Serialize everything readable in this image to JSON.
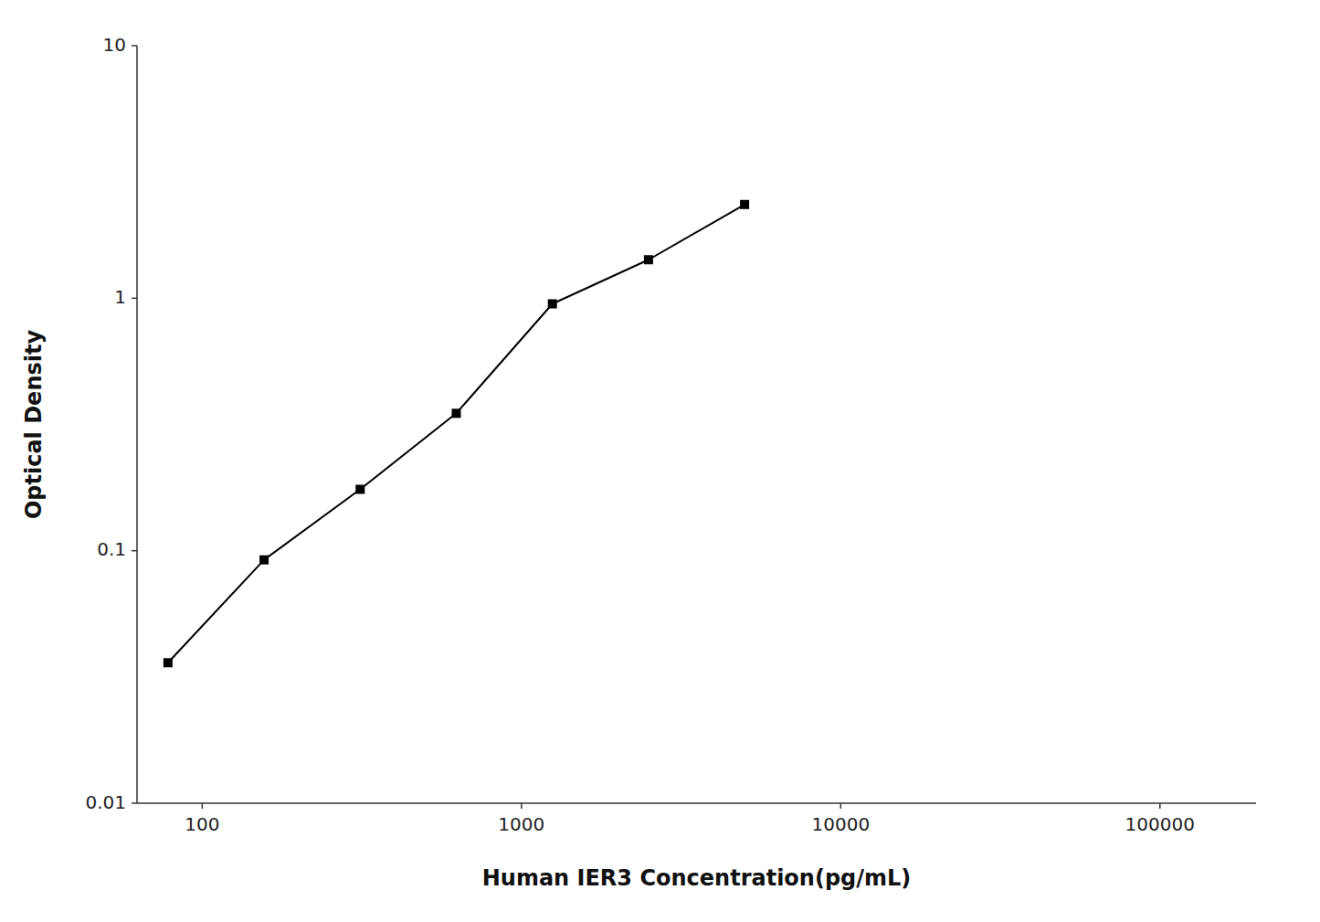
{
  "chart_data": {
    "type": "line",
    "x_label": "Human IER3 Concentration(pg/mL)",
    "y_label": "Optical Density",
    "x": [
      78.125,
      156.25,
      312.5,
      625,
      1250,
      2500,
      5000
    ],
    "values": [
      0.036,
      0.092,
      0.175,
      0.35,
      0.95,
      1.42,
      2.35
    ],
    "xlim": [
      62.5,
      200000
    ],
    "ylim": [
      0.01,
      10
    ],
    "xticks": [
      100,
      1000,
      10000,
      100000
    ],
    "yticks": [
      0.01,
      0.1,
      1,
      10
    ],
    "log": true,
    "grid": false,
    "color": "#000000",
    "marker": "square"
  }
}
